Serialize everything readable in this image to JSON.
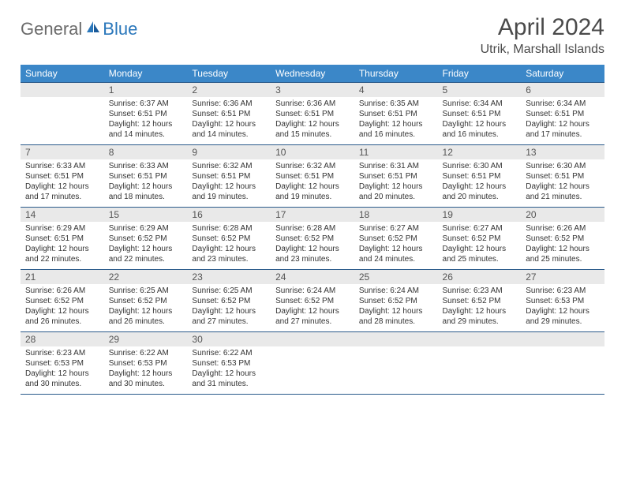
{
  "logo": {
    "part1": "General",
    "part2": "Blue"
  },
  "title": {
    "month": "April 2024",
    "location": "Utrik, Marshall Islands"
  },
  "colors": {
    "header_bg": "#3b87c8",
    "header_text": "#ffffff",
    "row_divider": "#2a5a8a",
    "daynum_bg": "#e9e9e9",
    "daynum_text": "#555555",
    "body_text": "#333333",
    "logo_gray": "#6b6b6b",
    "logo_blue": "#2a77bb",
    "title_text": "#4a4a4a",
    "page_bg": "#ffffff"
  },
  "weekdays": [
    "Sunday",
    "Monday",
    "Tuesday",
    "Wednesday",
    "Thursday",
    "Friday",
    "Saturday"
  ],
  "weeks": [
    [
      null,
      {
        "n": "1",
        "sr": "Sunrise: 6:37 AM",
        "ss": "Sunset: 6:51 PM",
        "dl": "Daylight: 12 hours and 14 minutes."
      },
      {
        "n": "2",
        "sr": "Sunrise: 6:36 AM",
        "ss": "Sunset: 6:51 PM",
        "dl": "Daylight: 12 hours and 14 minutes."
      },
      {
        "n": "3",
        "sr": "Sunrise: 6:36 AM",
        "ss": "Sunset: 6:51 PM",
        "dl": "Daylight: 12 hours and 15 minutes."
      },
      {
        "n": "4",
        "sr": "Sunrise: 6:35 AM",
        "ss": "Sunset: 6:51 PM",
        "dl": "Daylight: 12 hours and 16 minutes."
      },
      {
        "n": "5",
        "sr": "Sunrise: 6:34 AM",
        "ss": "Sunset: 6:51 PM",
        "dl": "Daylight: 12 hours and 16 minutes."
      },
      {
        "n": "6",
        "sr": "Sunrise: 6:34 AM",
        "ss": "Sunset: 6:51 PM",
        "dl": "Daylight: 12 hours and 17 minutes."
      }
    ],
    [
      {
        "n": "7",
        "sr": "Sunrise: 6:33 AM",
        "ss": "Sunset: 6:51 PM",
        "dl": "Daylight: 12 hours and 17 minutes."
      },
      {
        "n": "8",
        "sr": "Sunrise: 6:33 AM",
        "ss": "Sunset: 6:51 PM",
        "dl": "Daylight: 12 hours and 18 minutes."
      },
      {
        "n": "9",
        "sr": "Sunrise: 6:32 AM",
        "ss": "Sunset: 6:51 PM",
        "dl": "Daylight: 12 hours and 19 minutes."
      },
      {
        "n": "10",
        "sr": "Sunrise: 6:32 AM",
        "ss": "Sunset: 6:51 PM",
        "dl": "Daylight: 12 hours and 19 minutes."
      },
      {
        "n": "11",
        "sr": "Sunrise: 6:31 AM",
        "ss": "Sunset: 6:51 PM",
        "dl": "Daylight: 12 hours and 20 minutes."
      },
      {
        "n": "12",
        "sr": "Sunrise: 6:30 AM",
        "ss": "Sunset: 6:51 PM",
        "dl": "Daylight: 12 hours and 20 minutes."
      },
      {
        "n": "13",
        "sr": "Sunrise: 6:30 AM",
        "ss": "Sunset: 6:51 PM",
        "dl": "Daylight: 12 hours and 21 minutes."
      }
    ],
    [
      {
        "n": "14",
        "sr": "Sunrise: 6:29 AM",
        "ss": "Sunset: 6:51 PM",
        "dl": "Daylight: 12 hours and 22 minutes."
      },
      {
        "n": "15",
        "sr": "Sunrise: 6:29 AM",
        "ss": "Sunset: 6:52 PM",
        "dl": "Daylight: 12 hours and 22 minutes."
      },
      {
        "n": "16",
        "sr": "Sunrise: 6:28 AM",
        "ss": "Sunset: 6:52 PM",
        "dl": "Daylight: 12 hours and 23 minutes."
      },
      {
        "n": "17",
        "sr": "Sunrise: 6:28 AM",
        "ss": "Sunset: 6:52 PM",
        "dl": "Daylight: 12 hours and 23 minutes."
      },
      {
        "n": "18",
        "sr": "Sunrise: 6:27 AM",
        "ss": "Sunset: 6:52 PM",
        "dl": "Daylight: 12 hours and 24 minutes."
      },
      {
        "n": "19",
        "sr": "Sunrise: 6:27 AM",
        "ss": "Sunset: 6:52 PM",
        "dl": "Daylight: 12 hours and 25 minutes."
      },
      {
        "n": "20",
        "sr": "Sunrise: 6:26 AM",
        "ss": "Sunset: 6:52 PM",
        "dl": "Daylight: 12 hours and 25 minutes."
      }
    ],
    [
      {
        "n": "21",
        "sr": "Sunrise: 6:26 AM",
        "ss": "Sunset: 6:52 PM",
        "dl": "Daylight: 12 hours and 26 minutes."
      },
      {
        "n": "22",
        "sr": "Sunrise: 6:25 AM",
        "ss": "Sunset: 6:52 PM",
        "dl": "Daylight: 12 hours and 26 minutes."
      },
      {
        "n": "23",
        "sr": "Sunrise: 6:25 AM",
        "ss": "Sunset: 6:52 PM",
        "dl": "Daylight: 12 hours and 27 minutes."
      },
      {
        "n": "24",
        "sr": "Sunrise: 6:24 AM",
        "ss": "Sunset: 6:52 PM",
        "dl": "Daylight: 12 hours and 27 minutes."
      },
      {
        "n": "25",
        "sr": "Sunrise: 6:24 AM",
        "ss": "Sunset: 6:52 PM",
        "dl": "Daylight: 12 hours and 28 minutes."
      },
      {
        "n": "26",
        "sr": "Sunrise: 6:23 AM",
        "ss": "Sunset: 6:52 PM",
        "dl": "Daylight: 12 hours and 29 minutes."
      },
      {
        "n": "27",
        "sr": "Sunrise: 6:23 AM",
        "ss": "Sunset: 6:53 PM",
        "dl": "Daylight: 12 hours and 29 minutes."
      }
    ],
    [
      {
        "n": "28",
        "sr": "Sunrise: 6:23 AM",
        "ss": "Sunset: 6:53 PM",
        "dl": "Daylight: 12 hours and 30 minutes."
      },
      {
        "n": "29",
        "sr": "Sunrise: 6:22 AM",
        "ss": "Sunset: 6:53 PM",
        "dl": "Daylight: 12 hours and 30 minutes."
      },
      {
        "n": "30",
        "sr": "Sunrise: 6:22 AM",
        "ss": "Sunset: 6:53 PM",
        "dl": "Daylight: 12 hours and 31 minutes."
      },
      null,
      null,
      null,
      null
    ]
  ]
}
